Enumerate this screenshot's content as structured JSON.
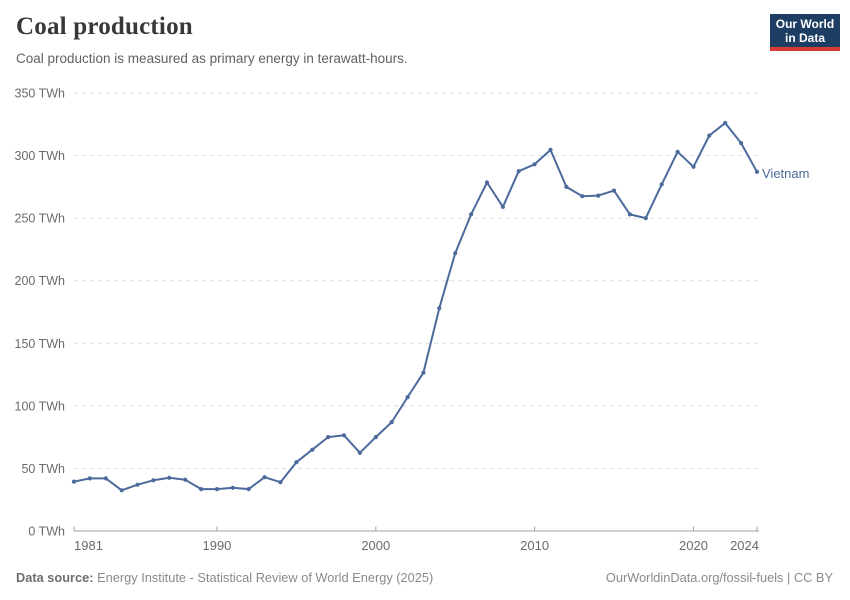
{
  "header": {
    "title": "Coal production",
    "subtitle": "Coal production is measured as primary energy in terawatt-hours."
  },
  "logo": {
    "line1": "Our World",
    "line2": "in Data",
    "bg_color": "#1d3d63",
    "accent_color": "#d73a35"
  },
  "footer": {
    "source_label": "Data source:",
    "source_text": " Energy Institute - Statistical Review of World Energy (2025)",
    "link_text": "OurWorldinData.org/fossil-fuels | CC BY"
  },
  "chart_data": {
    "type": "line",
    "title": "Coal production",
    "unit": "TWh",
    "entity": "Vietnam",
    "x": [
      1981,
      1982,
      1983,
      1984,
      1985,
      1986,
      1987,
      1988,
      1989,
      1990,
      1991,
      1992,
      1993,
      1994,
      1995,
      1996,
      1997,
      1998,
      1999,
      2000,
      2001,
      2002,
      2003,
      2004,
      2005,
      2006,
      2007,
      2008,
      2009,
      2010,
      2011,
      2012,
      2013,
      2014,
      2015,
      2016,
      2017,
      2018,
      2019,
      2020,
      2021,
      2022,
      2023,
      2024
    ],
    "series": [
      {
        "name": "Vietnam",
        "color": "#4C6A9C",
        "values": [
          39.5,
          42,
          42,
          32.5,
          37,
          40.5,
          42.5,
          41,
          33.5,
          33.5,
          34.5,
          33.5,
          43,
          39,
          55,
          65,
          75,
          76.5,
          62.5,
          75,
          87,
          107,
          126.5,
          178,
          222,
          253,
          278.5,
          259,
          287.5,
          293,
          304.5,
          275,
          267.5,
          268,
          272,
          253,
          250,
          277,
          303,
          291,
          316,
          326,
          310,
          287
        ]
      }
    ],
    "xlim": [
      1981,
      2024
    ],
    "ylim": [
      0,
      350
    ],
    "yticks": [
      {
        "value": 0,
        "label": "0 TWh"
      },
      {
        "value": 50,
        "label": "50 TWh"
      },
      {
        "value": 100,
        "label": "100 TWh"
      },
      {
        "value": 150,
        "label": "150 TWh"
      },
      {
        "value": 200,
        "label": "200 TWh"
      },
      {
        "value": 250,
        "label": "250 TWh"
      },
      {
        "value": 300,
        "label": "300 TWh"
      },
      {
        "value": 350,
        "label": "350 TWh"
      }
    ],
    "xticks": [
      {
        "value": 1981,
        "label": "1981"
      },
      {
        "value": 1990,
        "label": "1990"
      },
      {
        "value": 2000,
        "label": "2000"
      },
      {
        "value": 2010,
        "label": "2010"
      },
      {
        "value": 2020,
        "label": "2020"
      },
      {
        "value": 2024,
        "label": "2024"
      }
    ],
    "grid": "horizontal-dashed",
    "legend": "series-end-label",
    "colors": {
      "line": "#4C6A9C",
      "grid": "#dedede",
      "axis": "#a1a1a1",
      "tick_label": "#6b6b6b"
    }
  }
}
